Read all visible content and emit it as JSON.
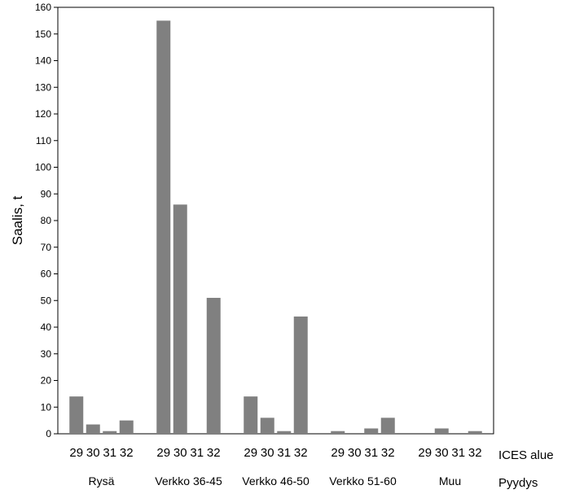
{
  "chart_data": {
    "type": "bar",
    "ylabel": "Saalis, t",
    "ylim": [
      0,
      160
    ],
    "yticks": [
      0,
      10,
      20,
      30,
      40,
      50,
      60,
      70,
      80,
      90,
      100,
      110,
      120,
      130,
      140,
      150,
      160
    ],
    "x_inner_title": "ICES alue",
    "x_outer_title": "Pyydys",
    "subcategories": [
      "29",
      "30",
      "31",
      "32"
    ],
    "groups": [
      {
        "name": "Rysä",
        "values": [
          14,
          3.5,
          1,
          5
        ]
      },
      {
        "name": "Verkko 36-45",
        "values": [
          155,
          86,
          0,
          51
        ]
      },
      {
        "name": "Verkko 46-50",
        "values": [
          14,
          6,
          1,
          44
        ]
      },
      {
        "name": "Verkko 51-60",
        "values": [
          1,
          0,
          2,
          6
        ]
      },
      {
        "name": "Muu",
        "values": [
          0,
          2,
          0,
          1
        ]
      }
    ],
    "bar_color": "#808080",
    "grid": false,
    "legend": "none"
  }
}
